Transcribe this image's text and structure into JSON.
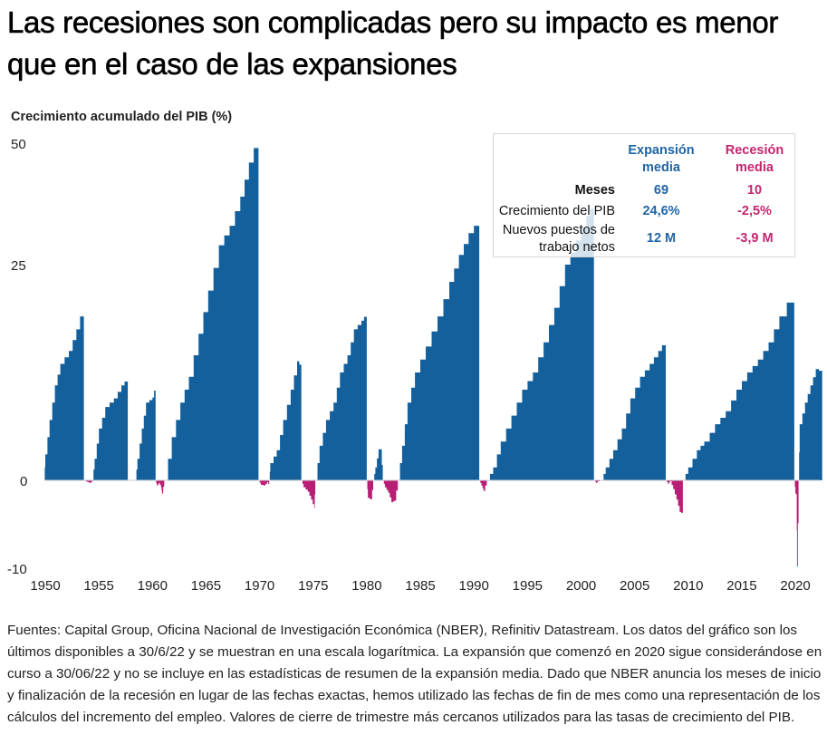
{
  "title": "Las recesiones son complicadas pero su impacto es menor que en el caso de las expansiones",
  "colors": {
    "expansion": "#14609c",
    "recession": "#b81f74",
    "expansion_text": "#1f65a6",
    "recession_text": "#c4256f"
  },
  "legend": {
    "col_expansion": "Expansión media",
    "col_recession": "Recesión media",
    "rows": [
      {
        "label": "Meses",
        "expansion": "69",
        "recession": "10"
      },
      {
        "label": "Crecimiento del PIB",
        "expansion": "24,6%",
        "recession": "-2,5%"
      },
      {
        "label": "Nuevos puestos de trabajo netos",
        "expansion": "12 M",
        "recession": "-3,9 M"
      }
    ]
  },
  "chart_data": {
    "type": "area",
    "title": "Las recesiones son complicadas pero su impacto es menor que en el caso de las expansiones",
    "ylabel": "Crecimiento acumulado del PIB (%)",
    "xlabel": "",
    "y_scale": "log",
    "yticks": [
      50,
      25,
      0,
      -10
    ],
    "ylim": [
      -10,
      52
    ],
    "xticks": [
      1950,
      1955,
      1960,
      1965,
      1970,
      1975,
      1980,
      1985,
      1990,
      1995,
      2000,
      2005,
      2010,
      2015,
      2020
    ],
    "xlim": [
      1950,
      2022.5
    ],
    "grid": false,
    "series": [
      {
        "name": "Expansión",
        "segments": [
          {
            "start": 1949.9,
            "end": 1953.6,
            "points": [
              [
                1949.9,
                0
              ],
              [
                1950.0,
                3
              ],
              [
                1950.4,
                7
              ],
              [
                1950.9,
                11
              ],
              [
                1951.4,
                13.5
              ],
              [
                1952.2,
                15
              ],
              [
                1952.9,
                17.5
              ],
              [
                1953.6,
                20.5
              ]
            ]
          },
          {
            "start": 1954.4,
            "end": 1957.7,
            "points": [
              [
                1954.4,
                0
              ],
              [
                1954.6,
                2.5
              ],
              [
                1955.0,
                6
              ],
              [
                1955.6,
                8.5
              ],
              [
                1956.4,
                9.5
              ],
              [
                1957.1,
                11
              ],
              [
                1957.7,
                11.9
              ]
            ]
          },
          {
            "start": 1958.4,
            "end": 1960.3,
            "points": [
              [
                1958.4,
                0
              ],
              [
                1958.6,
                2.5
              ],
              [
                1959.0,
                6
              ],
              [
                1959.4,
                9
              ],
              [
                1960.0,
                9.6
              ],
              [
                1960.3,
                11.2
              ]
            ]
          },
          {
            "start": 1961.1,
            "end": 1969.9,
            "points": [
              [
                1961.1,
                0
              ],
              [
                1961.8,
                5
              ],
              [
                1962.6,
                9
              ],
              [
                1963.4,
                12
              ],
              [
                1964.3,
                17
              ],
              [
                1965.2,
                22
              ],
              [
                1966.2,
                29
              ],
              [
                1967.2,
                33
              ],
              [
                1968.2,
                39
              ],
              [
                1969.0,
                46
              ],
              [
                1969.9,
                52
              ]
            ]
          },
          {
            "start": 1970.9,
            "end": 1973.9,
            "points": [
              [
                1970.9,
                0
              ],
              [
                1971.0,
                2
              ],
              [
                1971.6,
                3.5
              ],
              [
                1972.2,
                7
              ],
              [
                1972.9,
                10.5
              ],
              [
                1973.5,
                13.8
              ],
              [
                1973.9,
                13
              ]
            ]
          },
          {
            "start": 1975.2,
            "end": 1980.0,
            "points": [
              [
                1975.2,
                0
              ],
              [
                1975.6,
                4
              ],
              [
                1976.2,
                7
              ],
              [
                1976.9,
                9
              ],
              [
                1977.5,
                12.5
              ],
              [
                1978.2,
                14.5
              ],
              [
                1978.8,
                17.5
              ],
              [
                1979.5,
                18.5
              ],
              [
                1980.0,
                19.4
              ]
            ]
          },
          {
            "start": 1980.6,
            "end": 1981.5,
            "points": [
              [
                1980.6,
                0
              ],
              [
                1980.8,
                1.5
              ],
              [
                1981.1,
                3.6
              ],
              [
                1981.3,
                3.6
              ],
              [
                1981.5,
                0
              ]
            ]
          },
          {
            "start": 1982.9,
            "end": 1990.5,
            "points": [
              [
                1982.9,
                0
              ],
              [
                1983.3,
                4
              ],
              [
                1983.8,
                9
              ],
              [
                1984.5,
                12.5
              ],
              [
                1985.5,
                15.5
              ],
              [
                1986.6,
                19
              ],
              [
                1987.7,
                23
              ],
              [
                1988.6,
                27
              ],
              [
                1989.5,
                31.5
              ],
              [
                1990.5,
                34.5
              ]
            ]
          },
          {
            "start": 1991.2,
            "end": 2001.2,
            "points": [
              [
                1991.2,
                0
              ],
              [
                1991.8,
                1.5
              ],
              [
                1992.5,
                4.5
              ],
              [
                1993.5,
                7.5
              ],
              [
                1994.5,
                10.5
              ],
              [
                1995.5,
                12.5
              ],
              [
                1996.5,
                16
              ],
              [
                1997.5,
                20
              ],
              [
                1998.5,
                25
              ],
              [
                1999.5,
                30
              ],
              [
                2000.5,
                35
              ],
              [
                2001.2,
                38
              ]
            ]
          },
          {
            "start": 2001.9,
            "end": 2007.9,
            "points": [
              [
                2001.9,
                0
              ],
              [
                2002.3,
                1.5
              ],
              [
                2003.0,
                3.5
              ],
              [
                2003.8,
                6
              ],
              [
                2004.6,
                9.5
              ],
              [
                2005.5,
                12
              ],
              [
                2006.4,
                13.5
              ],
              [
                2007.2,
                15
              ],
              [
                2007.9,
                16.3
              ]
            ]
          },
          {
            "start": 2009.5,
            "end": 2019.9,
            "points": [
              [
                2009.5,
                0
              ],
              [
                2010.0,
                1.5
              ],
              [
                2010.8,
                3.5
              ],
              [
                2011.5,
                4.5
              ],
              [
                2012.5,
                6.5
              ],
              [
                2013.5,
                8
              ],
              [
                2014.5,
                10.5
              ],
              [
                2015.5,
                12.5
              ],
              [
                2016.5,
                14
              ],
              [
                2017.5,
                16
              ],
              [
                2018.5,
                19
              ],
              [
                2019.9,
                22.2
              ]
            ]
          },
          {
            "start": 2020.3,
            "end": 2022.5,
            "points": [
              [
                2020.3,
                0
              ],
              [
                2020.4,
                6.5
              ],
              [
                2020.9,
                9
              ],
              [
                2021.4,
                11
              ],
              [
                2021.9,
                12.9
              ],
              [
                2022.5,
                12.5
              ]
            ]
          }
        ]
      },
      {
        "name": "Recesión",
        "segments": [
          {
            "start": 1953.6,
            "end": 1954.4,
            "points": [
              [
                1953.6,
                0
              ],
              [
                1953.9,
                -0.2
              ],
              [
                1954.2,
                -0.3
              ],
              [
                1954.4,
                0
              ]
            ]
          },
          {
            "start": 1960.3,
            "end": 1961.1,
            "points": [
              [
                1960.3,
                0
              ],
              [
                1960.4,
                -0.6
              ],
              [
                1960.6,
                -0.3
              ],
              [
                1960.8,
                -0.8
              ],
              [
                1960.9,
                -1.5
              ],
              [
                1961.1,
                0
              ]
            ]
          },
          {
            "start": 1969.9,
            "end": 1970.9,
            "points": [
              [
                1969.9,
                0
              ],
              [
                1970.1,
                -0.5
              ],
              [
                1970.4,
                -0.6
              ],
              [
                1970.7,
                -0.2
              ],
              [
                1970.9,
                -0.6
              ]
            ]
          },
          {
            "start": 1973.9,
            "end": 1975.2,
            "points": [
              [
                1973.9,
                0
              ],
              [
                1974.1,
                -0.8
              ],
              [
                1974.5,
                -1.3
              ],
              [
                1974.8,
                -2.2
              ],
              [
                1975.1,
                -3.2
              ],
              [
                1975.2,
                0
              ]
            ]
          },
          {
            "start": 1980.0,
            "end": 1980.6,
            "points": [
              [
                1980.0,
                0
              ],
              [
                1980.1,
                -2.0
              ],
              [
                1980.4,
                -2.2
              ],
              [
                1980.6,
                0
              ]
            ]
          },
          {
            "start": 1981.5,
            "end": 1982.9,
            "points": [
              [
                1981.5,
                0
              ],
              [
                1981.7,
                -0.8
              ],
              [
                1982.0,
                -1.4
              ],
              [
                1982.3,
                -2.5
              ],
              [
                1982.6,
                -2.3
              ],
              [
                1982.9,
                0
              ]
            ]
          },
          {
            "start": 1990.5,
            "end": 1991.2,
            "points": [
              [
                1990.5,
                0
              ],
              [
                1990.7,
                -0.6
              ],
              [
                1990.9,
                -1.2
              ],
              [
                1991.2,
                0
              ]
            ]
          },
          {
            "start": 2001.2,
            "end": 2001.9,
            "points": [
              [
                2001.2,
                0
              ],
              [
                2001.4,
                -0.3
              ],
              [
                2001.6,
                -0.1
              ],
              [
                2001.9,
                0
              ]
            ]
          },
          {
            "start": 2007.9,
            "end": 2009.5,
            "points": [
              [
                2007.9,
                0
              ],
              [
                2008.1,
                -0.4
              ],
              [
                2008.3,
                -0.1
              ],
              [
                2008.6,
                -1.0
              ],
              [
                2008.9,
                -2.2
              ],
              [
                2009.2,
                -3.6
              ],
              [
                2009.5,
                -3.8
              ]
            ]
          },
          {
            "start": 2019.9,
            "end": 2020.3,
            "points": [
              [
                2019.9,
                0
              ],
              [
                2020.0,
                -1.5
              ],
              [
                2020.1,
                -1.6
              ],
              [
                2020.15,
                -9.8
              ],
              [
                2020.3,
                0
              ]
            ]
          }
        ]
      }
    ]
  },
  "footnote": "Fuentes: Capital Group, Oficina Nacional de Investigación Económica (NBER), Refinitiv Datastream. Los datos del gráfico son los últimos disponibles a 30/6/22 y se muestran en una escala logarítmica. La expansión que comenzó en 2020 sigue considerándose en curso a 30/06/22 y no se incluye en las estadísticas de resumen de la expansión media. Dado que NBER anuncia los meses de inicio y finalización de la recesión en lugar de las fechas exactas, hemos utilizado las fechas de fin de mes como una representación de los cálculos del incremento del empleo. Valores de cierre de trimestre más cercanos utilizados para las tasas de crecimiento del PIB."
}
